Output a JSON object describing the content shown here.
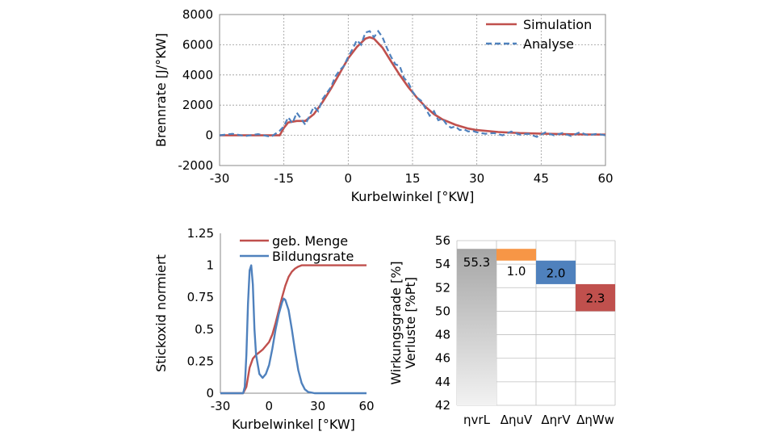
{
  "chart_data": [
    {
      "type": "line",
      "title": "",
      "xlabel": "Kurbelwinkel [°KW]",
      "ylabel": "Brennrate [J/°KW]",
      "xlim": [
        -30,
        60
      ],
      "ylim": [
        -2000,
        8000
      ],
      "xticks": [
        "-30",
        "-15",
        "0",
        "15",
        "30",
        "45",
        "60"
      ],
      "yticks": [
        "-2000",
        "0",
        "2000",
        "4000",
        "6000",
        "8000"
      ],
      "grid": true,
      "legend": "top-right",
      "series": [
        {
          "name": "Simulation",
          "color": "#c0504d",
          "style": "solid",
          "x": [
            -30,
            -16,
            -15,
            -14,
            -12,
            -10,
            -8,
            -6,
            -4,
            -2,
            0,
            2,
            4,
            5,
            6,
            8,
            10,
            12,
            14,
            16,
            18,
            20,
            22,
            25,
            28,
            30,
            35,
            40,
            45,
            50,
            55,
            60
          ],
          "y": [
            0,
            0,
            500,
            850,
            950,
            950,
            1400,
            2200,
            3100,
            4100,
            5100,
            5850,
            6400,
            6500,
            6400,
            5800,
            4900,
            4000,
            3200,
            2500,
            1900,
            1400,
            1050,
            700,
            450,
            350,
            220,
            150,
            110,
            80,
            60,
            50
          ]
        },
        {
          "name": "Analyse",
          "color": "#4f81bd",
          "style": "dashed",
          "x": [
            -30,
            -27,
            -24,
            -21,
            -18,
            -16,
            -15,
            -14,
            -13,
            -12,
            -11,
            -10,
            -9,
            -8,
            -7,
            -6,
            -5,
            -4,
            -3,
            -2,
            -1,
            0,
            1,
            2,
            3,
            4,
            5,
            6,
            7,
            8,
            9,
            10,
            11,
            12,
            13,
            14,
            15,
            16,
            17,
            18,
            19,
            20,
            21,
            22,
            23,
            24,
            25,
            26,
            27,
            28,
            29,
            30,
            32,
            34,
            36,
            38,
            40,
            42,
            44,
            46,
            48,
            50,
            52,
            54,
            56,
            58,
            60
          ],
          "y": [
            0,
            100,
            -50,
            80,
            -100,
            300,
            600,
            1200,
            800,
            1500,
            1100,
            700,
            1300,
            1900,
            1600,
            2400,
            2800,
            3200,
            3900,
            4300,
            4600,
            5200,
            5700,
            6300,
            6000,
            6800,
            6900,
            6500,
            6900,
            6500,
            5800,
            5200,
            4700,
            4600,
            3800,
            3500,
            2900,
            2500,
            2300,
            1800,
            1300,
            1600,
            1000,
            1100,
            700,
            500,
            600,
            350,
            400,
            250,
            300,
            200,
            100,
            150,
            0,
            250,
            50,
            100,
            -100,
            200,
            0,
            150,
            -50,
            200,
            0,
            100,
            0
          ]
        }
      ]
    },
    {
      "type": "line",
      "title": "",
      "xlabel": "Kurbelwinkel [°KW]",
      "ylabel": "Stickoxid normiert",
      "xlim": [
        -30,
        60
      ],
      "ylim": [
        0,
        1.25
      ],
      "xticks": [
        "-30",
        "0",
        "30",
        "60"
      ],
      "yticks": [
        "0",
        "0.25",
        "0.5",
        "0.75",
        "1",
        "1.25"
      ],
      "grid": false,
      "legend": "top-center",
      "series": [
        {
          "name": "geb. Menge",
          "color": "#c0504d",
          "style": "solid",
          "x": [
            -30,
            -16,
            -14,
            -12,
            -10,
            -8,
            -6,
            -4,
            -2,
            0,
            2,
            4,
            6,
            8,
            10,
            12,
            14,
            16,
            18,
            20,
            22,
            24,
            26,
            28,
            30,
            35,
            40,
            50,
            60
          ],
          "y": [
            0,
            0,
            0.05,
            0.2,
            0.27,
            0.3,
            0.32,
            0.34,
            0.37,
            0.4,
            0.46,
            0.55,
            0.65,
            0.75,
            0.84,
            0.91,
            0.95,
            0.975,
            0.99,
            1.0,
            1.0,
            1.0,
            1.0,
            1.0,
            1.0,
            1.0,
            1.0,
            1.0,
            1.0
          ]
        },
        {
          "name": "Bildungsrate",
          "color": "#4f81bd",
          "style": "solid",
          "x": [
            -30,
            -16,
            -15,
            -14,
            -13,
            -12,
            -11,
            -10,
            -9,
            -8,
            -6,
            -4,
            -2,
            0,
            2,
            4,
            6,
            8,
            9,
            10,
            12,
            14,
            16,
            18,
            20,
            22,
            24,
            26,
            28,
            30,
            35,
            40,
            50,
            60
          ],
          "y": [
            0,
            0,
            0.05,
            0.3,
            0.7,
            0.96,
            1.0,
            0.85,
            0.5,
            0.3,
            0.15,
            0.12,
            0.15,
            0.22,
            0.35,
            0.5,
            0.62,
            0.71,
            0.74,
            0.73,
            0.65,
            0.5,
            0.33,
            0.18,
            0.08,
            0.03,
            0.01,
            0.005,
            0.0,
            0.0,
            0.0,
            0.0,
            0.0,
            0.0
          ]
        }
      ]
    },
    {
      "type": "bar",
      "title": "",
      "ylabel": "Wirkungsgrade [%]\nVerluste [%Pt]",
      "ylim": [
        42,
        56
      ],
      "yticks": [
        "42",
        "44",
        "46",
        "48",
        "50",
        "52",
        "54",
        "56"
      ],
      "categories": [
        "ηvrL",
        "ΔηuV",
        "ΔηrV",
        "ΔηWw"
      ],
      "labels": [
        "55.3",
        "1.0",
        "2.0",
        "2.3"
      ],
      "bars": [
        {
          "bottom": 42,
          "top": 55.3,
          "color": "#bfbfbf"
        },
        {
          "bottom": 54.3,
          "top": 55.3,
          "color": "#f79646"
        },
        {
          "bottom": 52.3,
          "top": 54.3,
          "color": "#4f81bd"
        },
        {
          "bottom": 50.0,
          "top": 52.3,
          "color": "#c0504d"
        }
      ]
    }
  ]
}
